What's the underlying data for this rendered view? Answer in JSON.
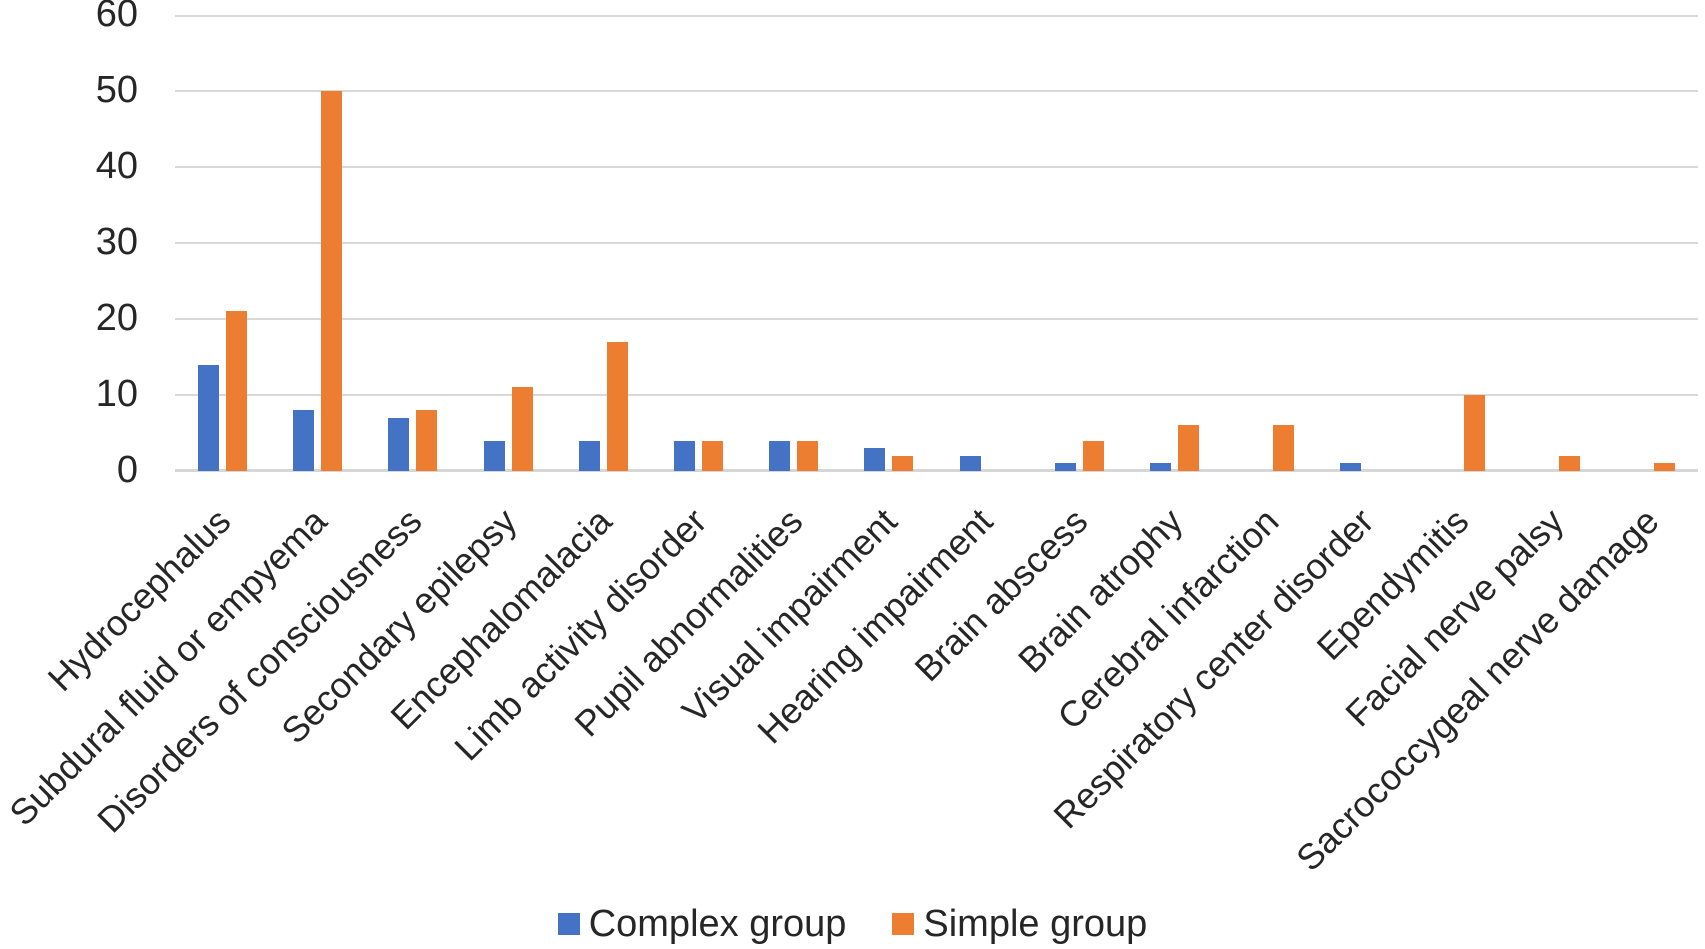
{
  "chart_data": {
    "type": "bar",
    "title": "",
    "xlabel": "",
    "ylabel": "",
    "categories": [
      "Hydrocephalus",
      "Subdural fluid or empyema",
      "Disorders of consciousness",
      "Secondary epilepsy",
      "Encephalomalacia",
      "Limb activity disorder",
      "Pupil abnormalities",
      "Visual impairment",
      "Hearing impairment",
      "Brain abscess",
      "Brain atrophy",
      "Cerebral infarction",
      "Respiratory center disorder",
      "Ependymitis",
      "Facial nerve palsy",
      "Sacrococcygeal nerve damage"
    ],
    "series": [
      {
        "name": "Complex group",
        "color": "#4472C4",
        "values": [
          14,
          8,
          7,
          4,
          4,
          4,
          4,
          3,
          2,
          1,
          1,
          0,
          1,
          0,
          0,
          0
        ]
      },
      {
        "name": "Simple group",
        "color": "#ED7D31",
        "values": [
          21,
          50,
          8,
          11,
          17,
          4,
          4,
          2,
          0,
          4,
          6,
          6,
          0,
          10,
          2,
          1
        ]
      }
    ],
    "ylim": [
      0,
      60
    ],
    "yticks": [
      0,
      10,
      20,
      30,
      40,
      50,
      60
    ],
    "grid": "horizontal",
    "gridline_color": "#D9D9D9",
    "text_color": "#262626",
    "legend_position": "bottom"
  }
}
